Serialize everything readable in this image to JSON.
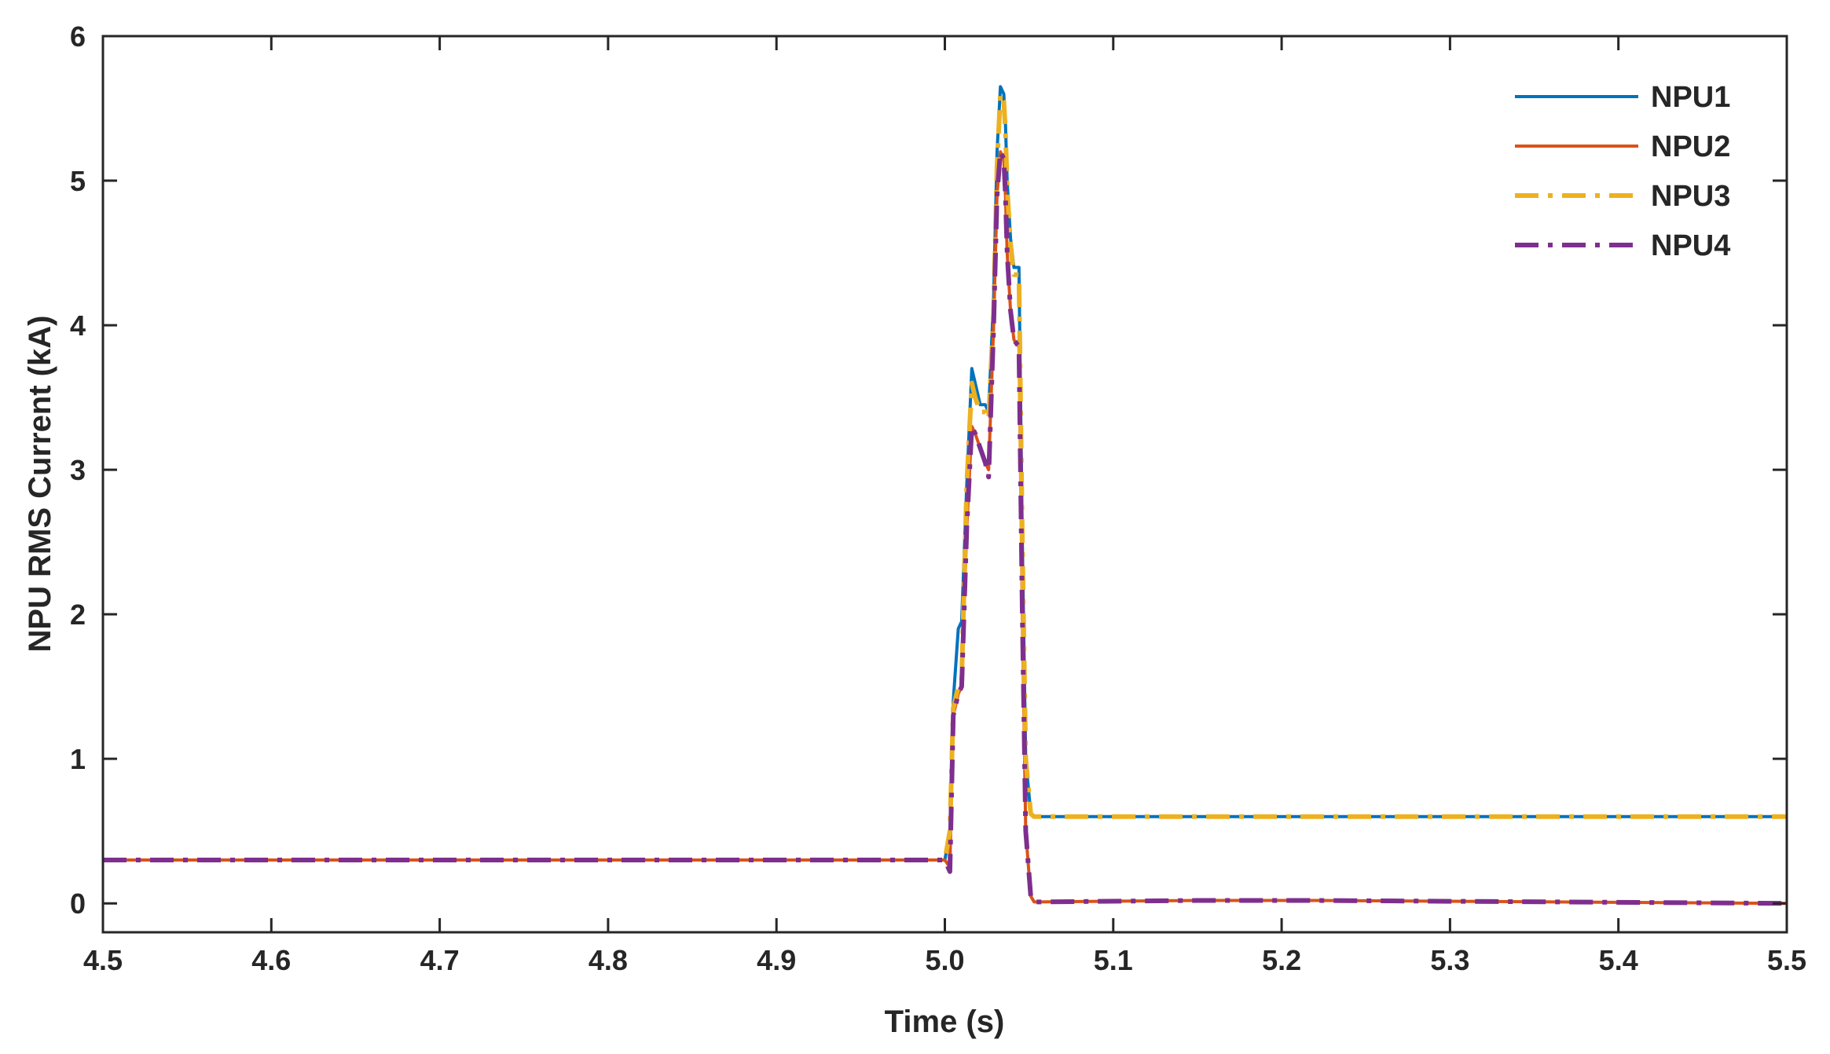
{
  "chart_data": {
    "type": "line",
    "title": "",
    "xlabel": "Time (s)",
    "ylabel": "NPU RMS Current (kA)",
    "xlim": [
      4.5,
      5.5
    ],
    "ylim": [
      -0.2,
      6
    ],
    "xticks": [
      "4.5",
      "4.6",
      "4.7",
      "4.8",
      "4.9",
      "5.0",
      "5.1",
      "5.2",
      "5.3",
      "5.4",
      "5.5"
    ],
    "yticks": [
      "0",
      "1",
      "2",
      "3",
      "4",
      "5",
      "6"
    ],
    "grid": false,
    "legend_position": "top-right",
    "series": [
      {
        "name": "NPU1",
        "color": "#0072BD",
        "style": "solid",
        "x": [
          4.5,
          5.0,
          5.003,
          5.005,
          5.008,
          5.01,
          5.013,
          5.016,
          5.018,
          5.021,
          5.024,
          5.026,
          5.029,
          5.031,
          5.033,
          5.035,
          5.036,
          5.037,
          5.039,
          5.041,
          5.044,
          5.046,
          5.048,
          5.051,
          5.053,
          5.055,
          5.5
        ],
        "y": [
          0.3,
          0.3,
          0.5,
          1.4,
          1.9,
          1.95,
          2.9,
          3.7,
          3.6,
          3.45,
          3.45,
          3.4,
          4.2,
          5.2,
          5.65,
          5.6,
          5.4,
          5.0,
          4.6,
          4.4,
          4.4,
          2.5,
          1.0,
          0.62,
          0.6,
          0.6,
          0.6
        ]
      },
      {
        "name": "NPU2",
        "color": "#D95319",
        "style": "solid",
        "x": [
          4.5,
          5.0,
          5.003,
          5.005,
          5.008,
          5.01,
          5.013,
          5.016,
          5.018,
          5.021,
          5.024,
          5.026,
          5.029,
          5.031,
          5.033,
          5.035,
          5.036,
          5.037,
          5.039,
          5.041,
          5.044,
          5.046,
          5.048,
          5.051,
          5.053,
          5.055,
          5.15,
          5.22,
          5.5
        ],
        "y": [
          0.3,
          0.3,
          0.25,
          1.3,
          1.45,
          1.5,
          2.6,
          3.3,
          3.25,
          3.15,
          3.05,
          3.0,
          4.0,
          4.9,
          5.2,
          5.15,
          4.9,
          4.5,
          4.1,
          3.9,
          3.85,
          2.0,
          0.5,
          0.05,
          0.01,
          0.01,
          0.02,
          0.02,
          0.0
        ]
      },
      {
        "name": "NPU3",
        "color": "#EDB120",
        "style": "dashdot",
        "x": [
          4.5,
          5.0,
          5.003,
          5.005,
          5.008,
          5.01,
          5.013,
          5.016,
          5.018,
          5.021,
          5.024,
          5.026,
          5.029,
          5.031,
          5.033,
          5.035,
          5.036,
          5.037,
          5.039,
          5.041,
          5.044,
          5.046,
          5.048,
          5.051,
          5.053,
          5.055,
          5.5
        ],
        "y": [
          0.3,
          0.3,
          0.5,
          1.35,
          1.5,
          1.55,
          2.9,
          3.6,
          3.5,
          3.4,
          3.4,
          3.35,
          4.1,
          5.1,
          5.6,
          5.55,
          5.35,
          4.95,
          4.55,
          4.35,
          4.35,
          2.5,
          1.0,
          0.62,
          0.6,
          0.6,
          0.6
        ]
      },
      {
        "name": "NPU4",
        "color": "#7E2F8E",
        "style": "dashdot",
        "x": [
          4.5,
          5.0,
          5.003,
          5.005,
          5.008,
          5.01,
          5.013,
          5.016,
          5.018,
          5.021,
          5.024,
          5.026,
          5.029,
          5.031,
          5.033,
          5.035,
          5.036,
          5.037,
          5.039,
          5.041,
          5.044,
          5.046,
          5.048,
          5.051,
          5.053,
          5.055,
          5.15,
          5.22,
          5.5
        ],
        "y": [
          0.3,
          0.3,
          0.22,
          1.3,
          1.45,
          1.5,
          2.6,
          3.3,
          3.25,
          3.15,
          3.05,
          2.95,
          4.0,
          4.9,
          5.2,
          5.15,
          4.9,
          4.5,
          4.1,
          3.9,
          3.85,
          2.0,
          0.5,
          0.05,
          0.01,
          0.01,
          0.02,
          0.02,
          0.0
        ]
      }
    ]
  }
}
